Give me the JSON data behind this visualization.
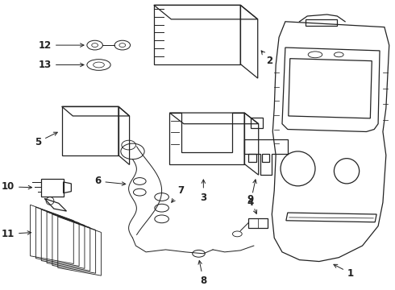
{
  "bg_color": "#ffffff",
  "line_color": "#222222",
  "lw": 0.9,
  "fig_w": 4.9,
  "fig_h": 3.6,
  "dpi": 100,
  "label_fontsize": 8.5,
  "label_fontweight": "bold"
}
